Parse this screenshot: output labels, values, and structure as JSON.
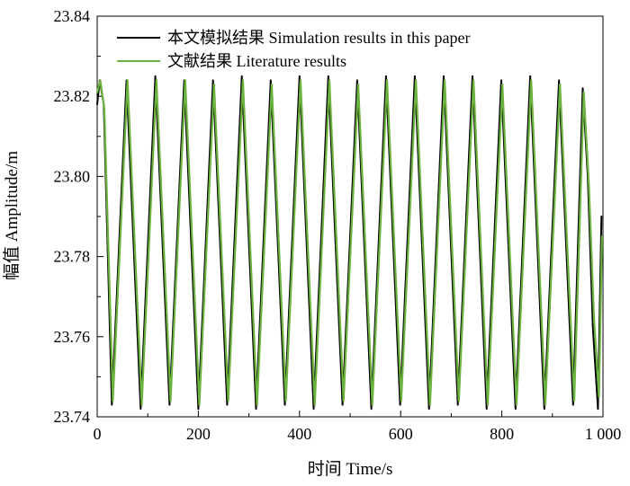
{
  "chart_data": {
    "type": "line",
    "title": "",
    "xlabel": "时间 Time/s",
    "ylabel": "幅值 Amplitude/m",
    "xlim": [
      0,
      1000
    ],
    "ylim": [
      23.74,
      23.84
    ],
    "xticks": [
      0,
      200,
      400,
      600,
      800,
      1000
    ],
    "xtick_labels": [
      "0",
      "200",
      "400",
      "600",
      "800",
      "1 000"
    ],
    "yticks": [
      23.74,
      23.76,
      23.78,
      23.8,
      23.82,
      23.84
    ],
    "ytick_labels": [
      "23.74",
      "23.76",
      "23.78",
      "23.80",
      "23.82",
      "23.84"
    ],
    "minor_ticks": true,
    "grid": false,
    "legend_position": "top-right",
    "series": [
      {
        "name": "本文模拟结果 Simulation results in this paper",
        "color": "#000000",
        "x": [
          0,
          5,
          13,
          29,
          58,
          86,
          115,
          143,
          172,
          200,
          229,
          257,
          286,
          314,
          343,
          371,
          400,
          428,
          457,
          485,
          514,
          542,
          571,
          599,
          628,
          656,
          685,
          713,
          742,
          770,
          799,
          827,
          856,
          884,
          913,
          941,
          960,
          970,
          980,
          990,
          997
        ],
        "y": [
          23.818,
          23.824,
          23.818,
          23.743,
          23.824,
          23.742,
          23.825,
          23.743,
          23.824,
          23.742,
          23.824,
          23.743,
          23.825,
          23.742,
          23.824,
          23.743,
          23.825,
          23.742,
          23.825,
          23.743,
          23.824,
          23.742,
          23.825,
          23.743,
          23.825,
          23.742,
          23.825,
          23.743,
          23.825,
          23.742,
          23.824,
          23.742,
          23.825,
          23.742,
          23.824,
          23.743,
          23.822,
          23.8,
          23.762,
          23.742,
          23.79
        ]
      },
      {
        "name": "文献结果 Literature results",
        "color": "#6db33f",
        "x": [
          0,
          6,
          14,
          31,
          60,
          88,
          117,
          145,
          174,
          202,
          231,
          259,
          288,
          316,
          345,
          373,
          402,
          430,
          459,
          487,
          516,
          544,
          573,
          601,
          630,
          658,
          687,
          715,
          744,
          772,
          801,
          829,
          858,
          886,
          915,
          943,
          962,
          972,
          982,
          992,
          998
        ],
        "y": [
          23.821,
          23.824,
          23.817,
          23.744,
          23.824,
          23.743,
          23.824,
          23.744,
          23.824,
          23.743,
          23.823,
          23.744,
          23.824,
          23.743,
          23.823,
          23.744,
          23.824,
          23.743,
          23.824,
          23.744,
          23.823,
          23.743,
          23.824,
          23.744,
          23.824,
          23.743,
          23.824,
          23.744,
          23.824,
          23.743,
          23.823,
          23.743,
          23.824,
          23.743,
          23.823,
          23.744,
          23.821,
          23.798,
          23.765,
          23.745,
          23.785
        ]
      }
    ]
  }
}
